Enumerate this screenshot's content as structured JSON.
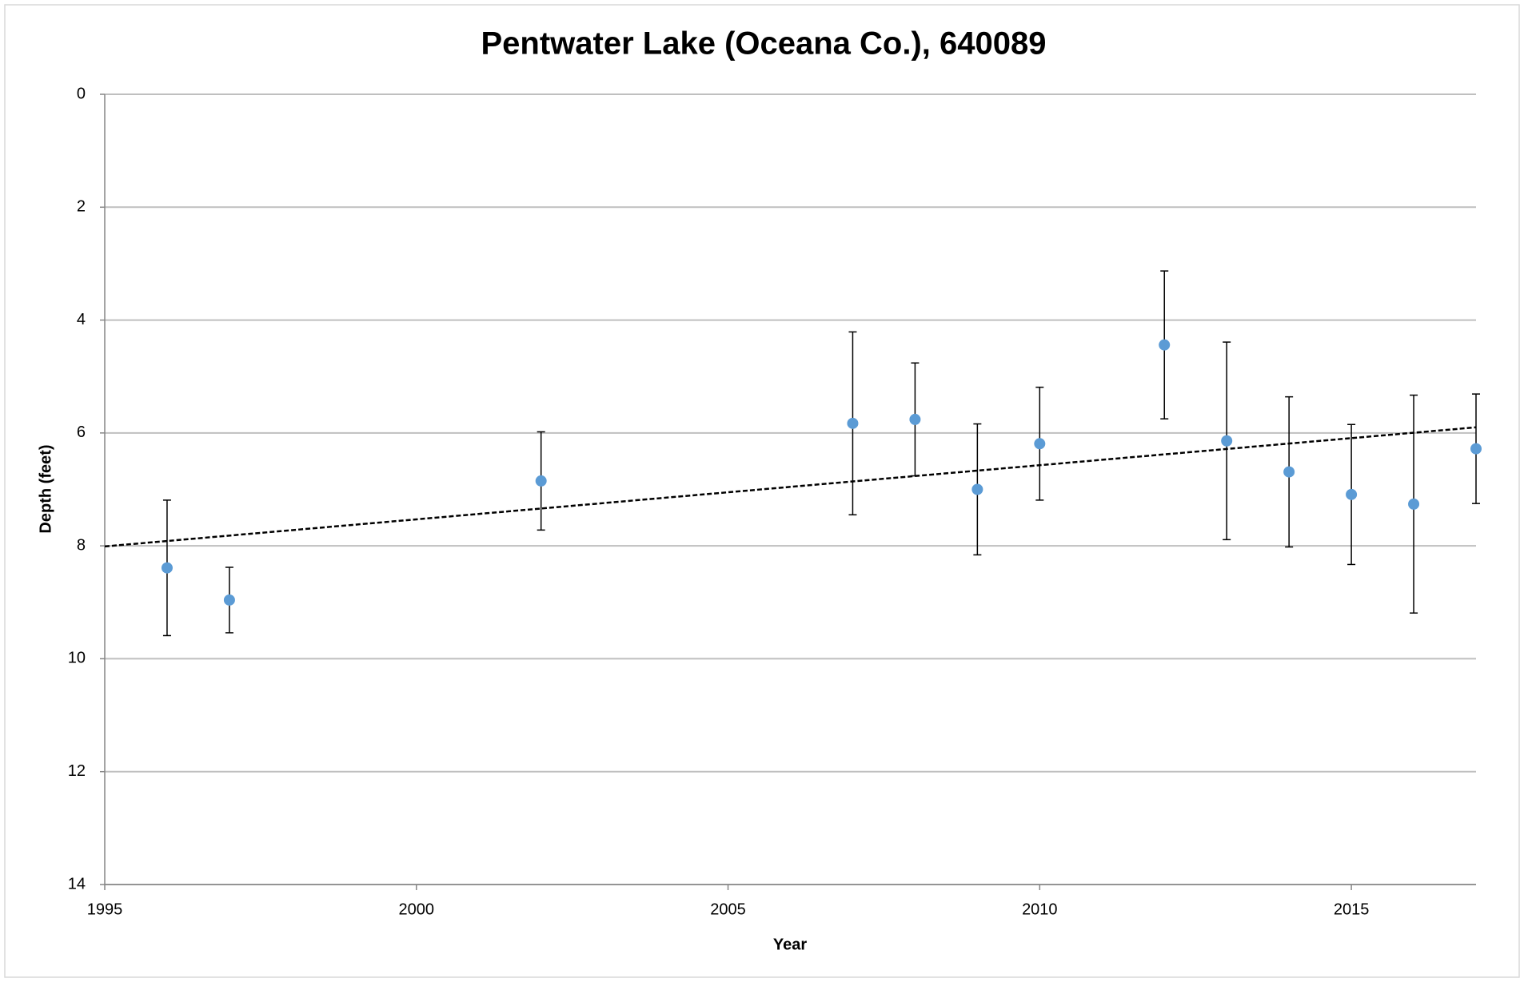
{
  "chart_data": {
    "type": "scatter",
    "title": "Pentwater Lake (Oceana Co.), 640089",
    "x_label": "Year",
    "y_label": "Depth (feet)",
    "xlim": [
      1995,
      2017
    ],
    "xticks": [
      1995,
      2000,
      2005,
      2010,
      2015
    ],
    "ylim": [
      0,
      14
    ],
    "yticks": [
      0,
      2,
      4,
      6,
      8,
      10,
      12,
      14
    ],
    "y_inverted": true,
    "grid": true,
    "series": [
      {
        "color": "#5b9bd5",
        "x": [
          1996,
          1997,
          2002,
          2007,
          2008,
          2009,
          2010,
          2012,
          2013,
          2014,
          2015,
          2016,
          2017
        ],
        "values": [
          8.39,
          8.96,
          6.85,
          5.83,
          5.76,
          7.0,
          6.19,
          4.44,
          6.14,
          6.69,
          7.09,
          7.26,
          6.28
        ],
        "errors": [
          1.2,
          0.58,
          0.87,
          1.62,
          1.0,
          1.16,
          1.0,
          1.31,
          1.75,
          1.33,
          1.24,
          1.93,
          0.97
        ]
      }
    ],
    "trendline": {
      "color": "#000000",
      "x": [
        1995,
        2017
      ],
      "values": [
        8.01,
        5.9
      ]
    }
  }
}
